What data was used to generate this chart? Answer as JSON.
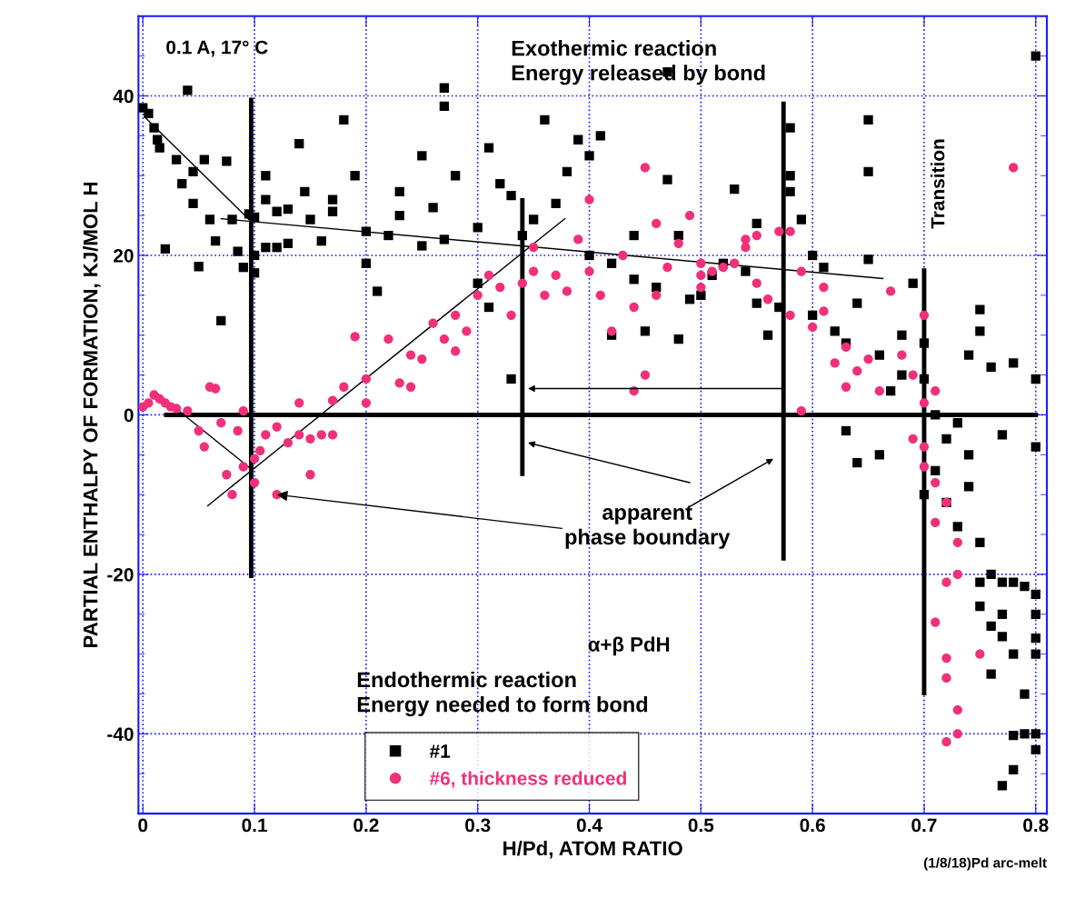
{
  "chart_data": {
    "type": "scatter",
    "xlabel": "H/Pd, ATOM RATIO",
    "ylabel": "PARTIAL ENTHALPY OF FORMATION, KJ/MOL H",
    "xlim": [
      -0.004,
      0.81
    ],
    "ylim": [
      -50,
      50
    ],
    "xticks": [
      {
        "value": 0,
        "label": "0"
      },
      0.1,
      0.2,
      0.3,
      0.4,
      0.5,
      0.6,
      0.7,
      0.8
    ],
    "yticks": [
      {
        "value": -50,
        "label": null
      },
      {
        "value": -45,
        "label": null
      },
      -40,
      {
        "value": -35,
        "label": null
      },
      {
        "value": -30,
        "label": null
      },
      {
        "value": -25,
        "label": null
      },
      -20,
      {
        "value": -15,
        "label": null
      },
      {
        "value": -10,
        "label": null
      },
      {
        "value": -5,
        "label": null
      },
      0,
      {
        "value": 5,
        "label": null
      },
      {
        "value": 10,
        "label": null
      },
      {
        "value": 15,
        "label": null
      },
      20,
      {
        "value": 25,
        "label": null
      },
      {
        "value": 30,
        "label": null
      },
      {
        "value": 35,
        "label": null
      },
      40,
      {
        "value": 45,
        "label": null
      },
      {
        "value": 50,
        "label": null
      }
    ],
    "grid": true,
    "legend": "bottom",
    "series": [
      {
        "name": "#1",
        "color": "#000000",
        "marker": "square",
        "x": [
          0.0,
          0.005,
          0.01,
          0.013,
          0.015,
          0.02,
          0.03,
          0.035,
          0.04,
          0.045,
          0.045,
          0.05,
          0.055,
          0.06,
          0.065,
          0.07,
          0.075,
          0.08,
          0.085,
          0.09,
          0.095,
          0.1,
          0.1,
          0.1,
          0.11,
          0.11,
          0.11,
          0.12,
          0.12,
          0.13,
          0.13,
          0.14,
          0.145,
          0.15,
          0.16,
          0.17,
          0.17,
          0.18,
          0.19,
          0.2,
          0.2,
          0.21,
          0.22,
          0.23,
          0.23,
          0.25,
          0.25,
          0.26,
          0.27,
          0.27,
          0.27,
          0.28,
          0.3,
          0.3,
          0.31,
          0.31,
          0.32,
          0.33,
          0.33,
          0.34,
          0.35,
          0.36,
          0.37,
          0.38,
          0.39,
          0.4,
          0.41,
          0.4,
          0.42,
          0.42,
          0.44,
          0.44,
          0.45,
          0.46,
          0.47,
          0.47,
          0.48,
          0.48,
          0.49,
          0.5,
          0.51,
          0.52,
          0.53,
          0.54,
          0.55,
          0.55,
          0.56,
          0.57,
          0.58,
          0.58,
          0.58,
          0.59,
          0.6,
          0.6,
          0.61,
          0.62,
          0.63,
          0.64,
          0.65,
          0.65,
          0.65,
          0.66,
          0.66,
          0.67,
          0.68,
          0.68,
          0.69,
          0.7,
          0.7,
          0.71,
          0.72,
          0.73,
          0.74,
          0.74,
          0.75,
          0.75,
          0.76,
          0.77,
          0.78,
          0.8,
          0.8,
          0.8,
          0.63,
          0.64,
          0.7,
          0.71,
          0.72,
          0.73,
          0.74,
          0.75,
          0.75,
          0.76,
          0.77,
          0.78,
          0.79,
          0.8,
          0.75,
          0.76,
          0.77,
          0.78,
          0.8,
          0.8,
          0.76,
          0.77,
          0.79,
          0.79,
          0.78,
          0.8,
          0.78,
          0.77,
          0.8,
          0.8
        ],
        "values": [
          38.5,
          37.8,
          36,
          34.5,
          33.5,
          20.8,
          32,
          29,
          40.7,
          30.5,
          26.5,
          18.6,
          32,
          24.5,
          21.8,
          11.8,
          31.8,
          24.5,
          20.5,
          18.5,
          25.2,
          24.8,
          20,
          17.8,
          30,
          27,
          21,
          25.5,
          21,
          25.8,
          21.5,
          34,
          28,
          24.5,
          21.8,
          25.5,
          27,
          37,
          30,
          23,
          19,
          15.5,
          22.5,
          25,
          28,
          32.5,
          21.2,
          26,
          22,
          41,
          38.7,
          30,
          23.5,
          16.5,
          13.5,
          33.5,
          29,
          4.5,
          27.5,
          22.5,
          24.5,
          37,
          26.5,
          30.5,
          34.5,
          32.5,
          35,
          20,
          19,
          10,
          17,
          22.5,
          10.5,
          16,
          43,
          29.5,
          22.5,
          9.5,
          14.5,
          15,
          17.5,
          19,
          28.3,
          18,
          24,
          14,
          10,
          13.5,
          36,
          30,
          28,
          24.5,
          20,
          12.5,
          18.5,
          10.5,
          9,
          14,
          37,
          30.5,
          19.5,
          7.5,
          -5,
          3,
          10,
          5,
          16.5,
          9,
          4.5,
          0,
          -3,
          -1,
          7.5,
          -5,
          13.2,
          10.5,
          6,
          -2.5,
          6.5,
          -4,
          4.5,
          45,
          -2,
          -6,
          -10,
          -7,
          -11,
          -14,
          -9,
          -16,
          -21,
          -20,
          -21,
          -21,
          -21.5,
          -22.5,
          -24,
          -26.5,
          -25,
          -30,
          -28,
          -30,
          -32.5,
          -27.8,
          -35,
          -40,
          -40.2,
          -40,
          -44.5,
          -46.5,
          -42,
          -25
        ]
      },
      {
        "name": "#6, thickness reduced",
        "color": "#f0307a",
        "marker": "circle",
        "x": [
          0.0,
          0.005,
          0.01,
          0.015,
          0.02,
          0.025,
          0.03,
          0.04,
          0.05,
          0.055,
          0.06,
          0.065,
          0.07,
          0.075,
          0.08,
          0.085,
          0.09,
          0.09,
          0.1,
          0.1,
          0.105,
          0.11,
          0.12,
          0.12,
          0.13,
          0.14,
          0.14,
          0.15,
          0.15,
          0.16,
          0.17,
          0.17,
          0.18,
          0.19,
          0.2,
          0.2,
          0.22,
          0.23,
          0.24,
          0.24,
          0.25,
          0.26,
          0.27,
          0.28,
          0.28,
          0.29,
          0.3,
          0.31,
          0.32,
          0.33,
          0.34,
          0.35,
          0.35,
          0.36,
          0.37,
          0.38,
          0.39,
          0.4,
          0.41,
          0.4,
          0.42,
          0.43,
          0.44,
          0.45,
          0.45,
          0.46,
          0.46,
          0.47,
          0.48,
          0.49,
          0.5,
          0.5,
          0.51,
          0.52,
          0.53,
          0.54,
          0.55,
          0.55,
          0.56,
          0.57,
          0.58,
          0.58,
          0.59,
          0.6,
          0.61,
          0.61,
          0.62,
          0.63,
          0.63,
          0.64,
          0.65,
          0.66,
          0.67,
          0.68,
          0.69,
          0.7,
          0.7,
          0.71,
          0.7,
          0.69,
          0.7,
          0.71,
          0.72,
          0.71,
          0.73,
          0.72,
          0.73,
          0.71,
          0.72,
          0.72,
          0.75,
          0.73,
          0.73,
          0.72,
          0.78,
          0.5,
          0.54,
          0.44,
          0.59
        ],
        "values": [
          1,
          1.5,
          2.5,
          2,
          1.5,
          1,
          0.8,
          0.5,
          -2,
          -4,
          3.5,
          3.3,
          -1,
          -7.5,
          -10,
          -2,
          0.5,
          -6.5,
          -5.5,
          -8.5,
          -4.5,
          -2.5,
          -10,
          -1.5,
          -3.5,
          1.5,
          -2.5,
          -7.5,
          -3,
          -2.5,
          -2.5,
          1.8,
          3.5,
          9.8,
          4.5,
          1.5,
          9.5,
          4,
          3.5,
          7.5,
          7,
          11.5,
          9.5,
          12.5,
          8,
          10.5,
          15,
          17.5,
          16,
          12.5,
          16.5,
          21,
          18,
          15,
          17.5,
          15.5,
          22,
          18,
          15,
          27,
          10.5,
          20,
          13.5,
          5,
          31,
          24,
          15,
          18.5,
          21.5,
          25,
          19,
          16,
          18,
          18.5,
          19,
          21,
          22.5,
          16.5,
          14.5,
          23,
          12.5,
          23,
          18,
          11,
          13,
          16,
          6.5,
          3.5,
          8.5,
          5.5,
          7,
          3,
          15.5,
          7.5,
          5,
          12.5,
          1.5,
          3,
          -4,
          -3,
          -6.5,
          -8.5,
          -11,
          -13.5,
          -16,
          -21,
          -20,
          -26,
          -30.5,
          -33,
          -30,
          -37,
          -40,
          -41,
          31,
          17.5,
          22,
          3,
          0.5
        ]
      },
      {
        "type": "line",
        "color": "#000000",
        "x": [
          0.002,
          0.098
        ],
        "values": [
          37.3,
          24.1
        ]
      },
      {
        "type": "line",
        "color": "#000000",
        "x": [
          0.07,
          0.663
        ],
        "values": [
          24.6,
          17.1
        ]
      },
      {
        "type": "line",
        "color": "#000000",
        "x": [
          0.011,
          0.098
        ],
        "values": [
          2.9,
          -6.9
        ]
      },
      {
        "type": "line",
        "color": "#000000",
        "x": [
          0.058,
          0.378
        ],
        "values": [
          -11.4,
          24.6
        ]
      },
      {
        "type": "line",
        "color": "#000000",
        "x": [
          0.097,
          0.097
        ],
        "values": [
          -20.2,
          39.5
        ]
      },
      {
        "type": "line",
        "color": "#000000",
        "x": [
          0.34,
          0.34
        ],
        "values": [
          -7.4,
          26.9
        ]
      },
      {
        "type": "line",
        "color": "#000000",
        "x": [
          0.574,
          0.574
        ],
        "values": [
          -18,
          39
        ]
      },
      {
        "type": "line",
        "color": "#000000",
        "x": [
          0.7,
          0.7
        ],
        "values": [
          -34.9,
          18.1
        ]
      },
      {
        "type": "line",
        "color": "#000000",
        "x": [
          0.021,
          0.8
        ],
        "values": [
          0,
          0
        ]
      }
    ],
    "annotations": [
      "0.1 A, 17° C",
      "Exothermic reaction\nEnergy released by bond",
      {
        "text": "apparent\nphase boundary",
        "x": 0.12,
        "y": -10
      },
      "α+β PdH",
      "Endothermic reaction\nEnergy needed to form bond",
      "Transition",
      "(1/8/18)Pd arc-melt"
    ]
  }
}
